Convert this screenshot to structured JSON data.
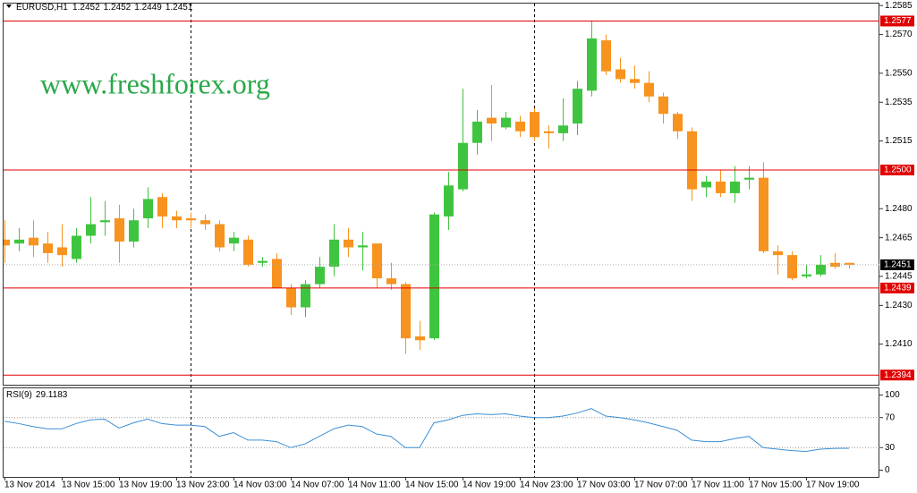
{
  "chart_data": [
    {
      "type": "candlestick",
      "title": "EURUSD,H1",
      "watermark": "www.freshforex.org",
      "up_color": "#3fc43f",
      "down_color": "#f7931e",
      "categories": [
        "13 Nov 2014",
        null,
        null,
        null,
        "13 Nov 15:00",
        null,
        null,
        null,
        "13 Nov 19:00",
        null,
        null,
        null,
        "13 Nov 23:00",
        null,
        null,
        null,
        "14 Nov 03:00",
        null,
        null,
        null,
        "14 Nov 07:00",
        null,
        null,
        null,
        "14 Nov 11:00",
        null,
        null,
        null,
        "14 Nov 15:00",
        null,
        null,
        null,
        "14 Nov 19:00",
        null,
        null,
        null,
        "14 Nov 23:00",
        null,
        null,
        null,
        "17 Nov 03:00",
        null,
        null,
        null,
        "17 Nov 07:00",
        null,
        null,
        null,
        "17 Nov 11:00",
        null,
        null,
        null,
        "17 Nov 15:00",
        null,
        null,
        null,
        "17 Nov 19:00",
        null,
        null,
        null
      ],
      "open": [
        1.2464,
        1.2462,
        1.2465,
        1.2462,
        1.246,
        1.2454,
        1.2466,
        1.2473,
        1.2475,
        1.2463,
        1.2475,
        1.2486,
        1.2476,
        1.2475,
        1.2474,
        1.2472,
        1.2462,
        1.2464,
        1.2452,
        1.2454,
        1.2439,
        1.2429,
        1.2441,
        1.245,
        1.2464,
        1.246,
        1.2462,
        1.2444,
        1.2441,
        1.2414,
        1.2413,
        1.2476,
        1.249,
        1.2514,
        1.2527,
        1.2522,
        1.2525,
        1.253,
        1.252,
        1.2519,
        1.2524,
        1.2541,
        1.2567,
        1.2552,
        1.2547,
        1.2545,
        1.2538,
        1.2529,
        1.252,
        1.2491,
        1.2494,
        1.2488,
        1.2495,
        1.2496,
        1.2458,
        1.2456,
        1.2445,
        1.2446,
        1.2452,
        1.2452
      ],
      "high": [
        1.2474,
        1.247,
        1.2474,
        1.2468,
        1.2472,
        1.247,
        1.2486,
        1.2484,
        1.2482,
        1.248,
        1.2491,
        1.2488,
        1.2479,
        1.2478,
        1.2477,
        1.2474,
        1.2468,
        1.2466,
        1.2455,
        1.2457,
        1.2441,
        1.2443,
        1.2455,
        1.2472,
        1.247,
        1.2468,
        1.2462,
        1.2452,
        1.2442,
        1.2422,
        1.2478,
        1.2499,
        1.2542,
        1.2531,
        1.2544,
        1.253,
        1.2528,
        1.2532,
        1.2523,
        1.2537,
        1.2546,
        1.2577,
        1.257,
        1.2558,
        1.2554,
        1.2551,
        1.254,
        1.253,
        1.2522,
        1.2497,
        1.25,
        1.2502,
        1.2502,
        1.2504,
        1.2461,
        1.2458,
        1.2451,
        1.2456,
        1.2457,
        1.2452
      ],
      "low": [
        1.2452,
        1.2458,
        1.2455,
        1.2452,
        1.245,
        1.2452,
        1.2462,
        1.2466,
        1.2452,
        1.246,
        1.247,
        1.247,
        1.247,
        1.247,
        1.2469,
        1.2458,
        1.2458,
        1.245,
        1.245,
        1.2439,
        1.2425,
        1.2424,
        1.2439,
        1.2445,
        1.2455,
        1.2448,
        1.2439,
        1.2438,
        1.2405,
        1.2407,
        1.2412,
        1.2469,
        1.2489,
        1.2508,
        1.2515,
        1.2521,
        1.2517,
        1.2515,
        1.2511,
        1.2515,
        1.2518,
        1.2538,
        1.2549,
        1.2545,
        1.2542,
        1.2535,
        1.2524,
        1.2516,
        1.2484,
        1.2486,
        1.2486,
        1.2483,
        1.249,
        1.2457,
        1.2446,
        1.2443,
        1.2444,
        1.2445,
        1.2449,
        1.2449
      ],
      "close": [
        1.2461,
        1.2464,
        1.2461,
        1.2457,
        1.2456,
        1.2466,
        1.2472,
        1.2474,
        1.2463,
        1.2474,
        1.2485,
        1.2476,
        1.2474,
        1.2474,
        1.2472,
        1.246,
        1.2465,
        1.2451,
        1.2453,
        1.2439,
        1.2429,
        1.2441,
        1.245,
        1.2464,
        1.246,
        1.2461,
        1.2444,
        1.2441,
        1.2413,
        1.2412,
        1.2477,
        1.2492,
        1.2514,
        1.2525,
        1.2524,
        1.2527,
        1.252,
        1.2517,
        1.2519,
        1.2523,
        1.2542,
        1.2568,
        1.2551,
        1.2547,
        1.2545,
        1.2538,
        1.2529,
        1.252,
        1.249,
        1.2494,
        1.2488,
        1.2494,
        1.2496,
        1.2458,
        1.2456,
        1.2444,
        1.2446,
        1.2451,
        1.245,
        1.2451
      ],
      "ylim": [
        1.2389,
        1.2586
      ],
      "yticks": [
        1.2585,
        {
          "value": 1.257,
          "label": "1.2570"
        },
        {
          "value": 1.255,
          "label": "1.2550"
        },
        1.2535,
        1.2515,
        {
          "value": 1.248,
          "label": "1.2480"
        },
        1.2465,
        1.2445,
        {
          "value": 1.243,
          "label": "1.2430"
        },
        {
          "value": 1.241,
          "label": "1.2410"
        }
      ],
      "levels": [
        {
          "value": 1.2577,
          "label": "1.2577"
        },
        {
          "value": 1.25,
          "label": "1.2500"
        },
        {
          "value": 1.2439,
          "label": "1.2439"
        },
        {
          "value": 1.2394,
          "label": "1.2394"
        }
      ],
      "level_color": "#e00000"
    },
    {
      "type": "line",
      "title": "RSI(9)",
      "color": "#3b8fd6",
      "values": [
        65,
        62,
        58,
        55,
        55,
        62,
        67,
        68,
        56,
        63,
        68,
        62,
        60,
        60,
        58,
        45,
        50,
        40,
        40,
        38,
        30,
        35,
        45,
        55,
        60,
        58,
        48,
        45,
        30,
        30,
        63,
        67,
        73,
        75,
        74,
        75,
        72,
        70,
        70,
        72,
        76,
        82,
        72,
        70,
        67,
        63,
        58,
        53,
        40,
        38,
        38,
        42,
        45,
        30,
        28,
        26,
        25,
        28,
        29,
        29.1183
      ],
      "ylim": [
        -9,
        109
      ],
      "yticks": [
        100,
        70,
        30,
        0
      ],
      "levels": [
        70,
        30
      ]
    }
  ]
}
